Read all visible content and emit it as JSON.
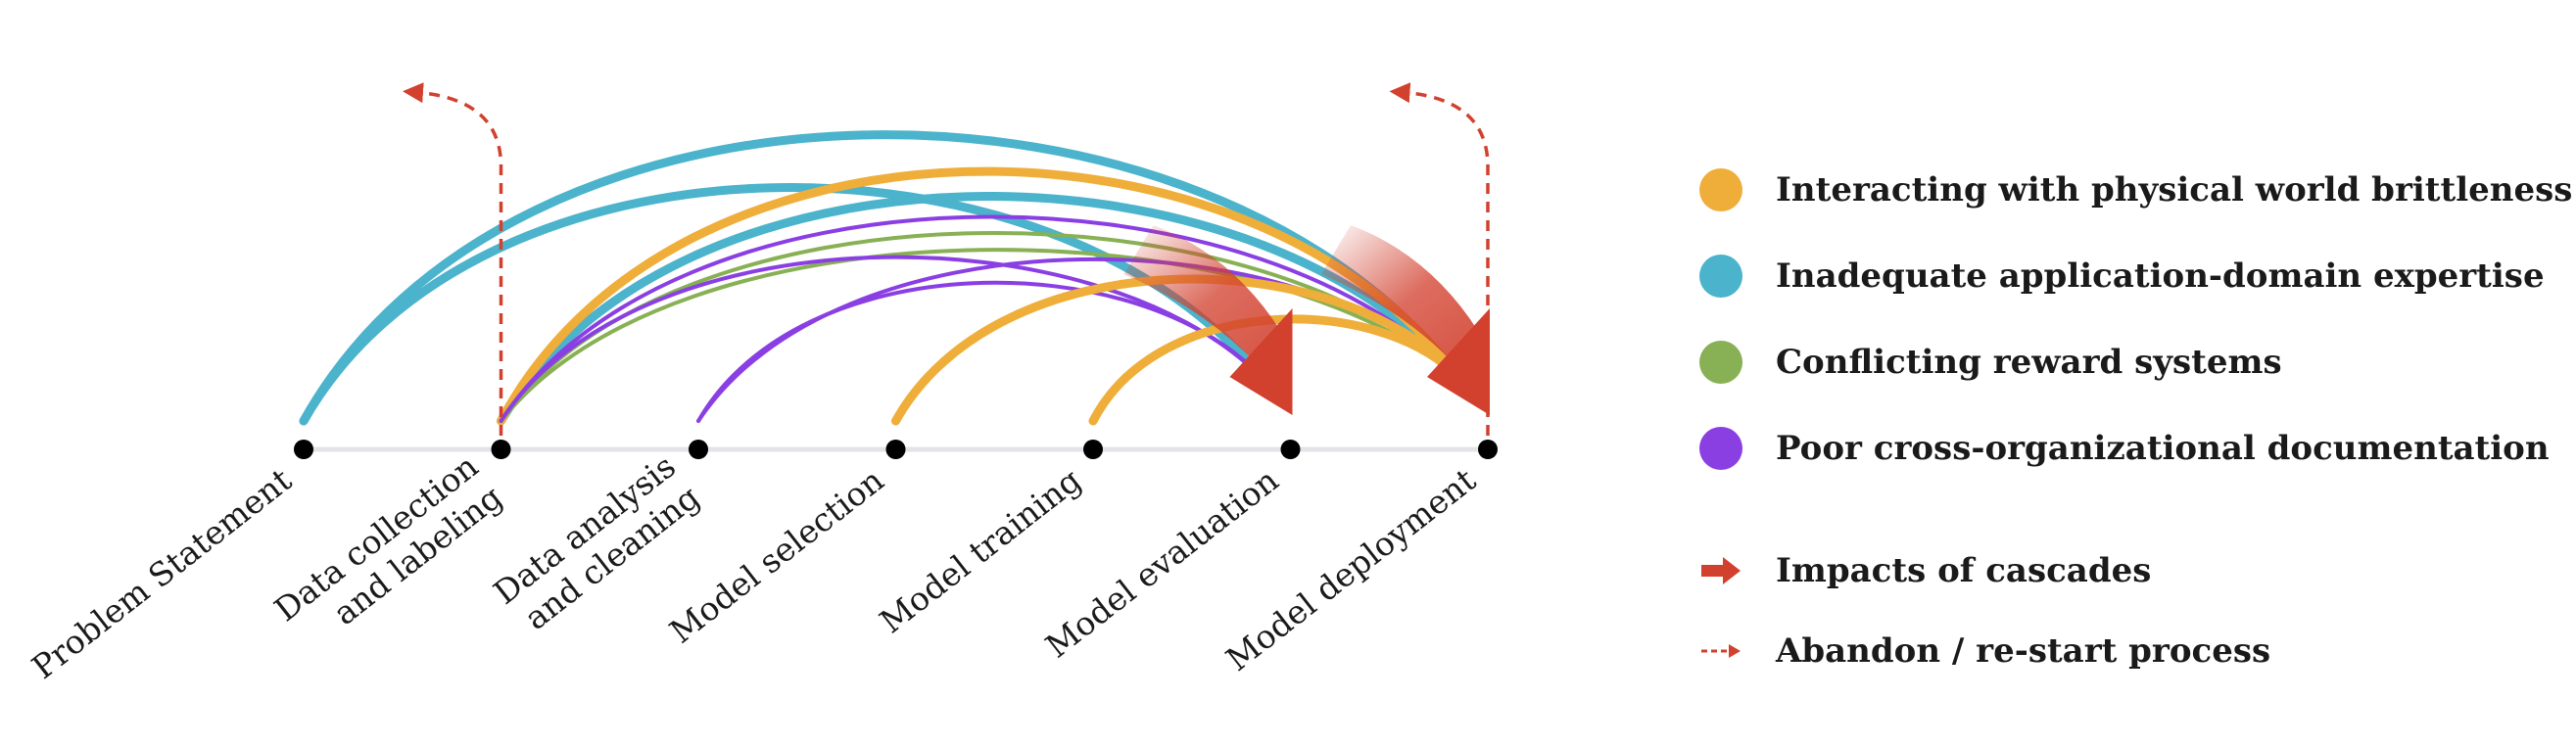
{
  "stages": [
    [
      "Problem Statement"
    ],
    [
      "Data collection",
      "and labeling"
    ],
    [
      "Data analysis",
      "and cleaning"
    ],
    [
      "Model selection"
    ],
    [
      "Model training"
    ],
    [
      "Model evaluation"
    ],
    [
      "Model deployment"
    ]
  ],
  "colors": {
    "physical": "#EFAE3A",
    "domain": "#4BB3CB",
    "reward": "#88B054",
    "documentation": "#8A3FE3",
    "impact": "#D2402E",
    "abandon": "#D2402E",
    "node": "#000000",
    "baseline": "#E4E4E8"
  },
  "legend": {
    "physical": "Interacting with physical world brittleness",
    "domain": "Inadequate application-domain expertise",
    "reward": "Conflicting reward systems",
    "documentation": "Poor cross-organizational documentation",
    "impacts": "Impacts of cascades",
    "abandon": "Abandon / re-start process"
  },
  "legend_icons": {
    "physical": "circle",
    "domain": "circle",
    "reward": "circle",
    "documentation": "circle",
    "impacts": "red-arrow-icon",
    "abandon": "dashed-arrow-icon"
  },
  "cascades": [
    {
      "from": 0,
      "to": 5,
      "category": "domain"
    },
    {
      "from": 0,
      "to": 6,
      "category": "domain"
    },
    {
      "from": 1,
      "to": 6,
      "category": "domain"
    },
    {
      "from": 1,
      "to": 6,
      "category": "physical"
    },
    {
      "from": 1,
      "to": 6,
      "category": "documentation"
    },
    {
      "from": 1,
      "to": 6,
      "category": "reward"
    },
    {
      "from": 1,
      "to": 6,
      "category": "reward"
    },
    {
      "from": 1,
      "to": 5,
      "category": "documentation"
    },
    {
      "from": 2,
      "to": 6,
      "category": "documentation"
    },
    {
      "from": 2,
      "to": 5,
      "category": "documentation"
    },
    {
      "from": 3,
      "to": 6,
      "category": "physical"
    },
    {
      "from": 4,
      "to": 6,
      "category": "physical"
    }
  ],
  "restarts": [
    {
      "at": 1
    },
    {
      "at": 6
    }
  ]
}
